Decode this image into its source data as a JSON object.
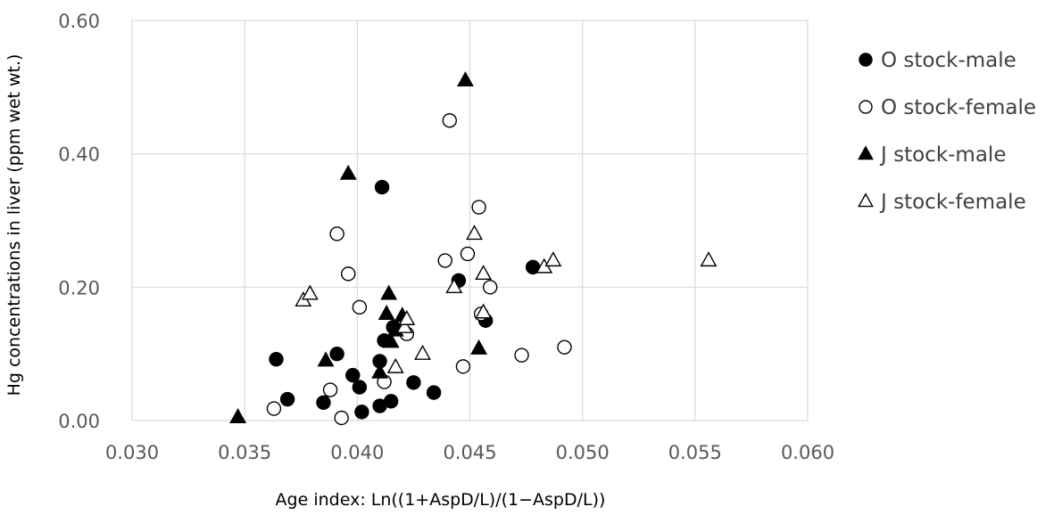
{
  "chart_data": {
    "type": "scatter",
    "title": "",
    "xlabel": "Age index: Ln((1+AspD/L)/(1−AspD/L))",
    "ylabel": "Hg concentrations in liver (ppm wet wt.)",
    "xlim": [
      0.03,
      0.06
    ],
    "ylim": [
      0.0,
      0.6
    ],
    "xticks": [
      "0.030",
      "0.035",
      "0.040",
      "0.045",
      "0.050",
      "0.055",
      "0.060"
    ],
    "yticks": [
      "0.00",
      "0.20",
      "0.40",
      "0.60"
    ],
    "grid": true,
    "legend_position": "right",
    "series": [
      {
        "name": "O stock-male",
        "marker": "circle-filled",
        "points": [
          [
            0.0364,
            0.092
          ],
          [
            0.0369,
            0.032
          ],
          [
            0.0385,
            0.027
          ],
          [
            0.0391,
            0.1
          ],
          [
            0.0398,
            0.068
          ],
          [
            0.0401,
            0.05
          ],
          [
            0.0402,
            0.013
          ],
          [
            0.041,
            0.022
          ],
          [
            0.041,
            0.089
          ],
          [
            0.0411,
            0.35
          ],
          [
            0.0412,
            0.12
          ],
          [
            0.0415,
            0.029
          ],
          [
            0.0416,
            0.14
          ],
          [
            0.0425,
            0.057
          ],
          [
            0.0434,
            0.042
          ],
          [
            0.0445,
            0.21
          ],
          [
            0.0457,
            0.15
          ],
          [
            0.0478,
            0.23
          ]
        ]
      },
      {
        "name": "O stock-female",
        "marker": "circle-open",
        "points": [
          [
            0.0363,
            0.018
          ],
          [
            0.0388,
            0.046
          ],
          [
            0.0391,
            0.28
          ],
          [
            0.0393,
            0.004
          ],
          [
            0.0396,
            0.22
          ],
          [
            0.0401,
            0.17
          ],
          [
            0.0412,
            0.058
          ],
          [
            0.0422,
            0.13
          ],
          [
            0.0439,
            0.24
          ],
          [
            0.0441,
            0.45
          ],
          [
            0.0447,
            0.081
          ],
          [
            0.0449,
            0.25
          ],
          [
            0.0454,
            0.32
          ],
          [
            0.0455,
            0.16
          ],
          [
            0.0459,
            0.2
          ],
          [
            0.0473,
            0.098
          ],
          [
            0.0492,
            0.11
          ]
        ]
      },
      {
        "name": "J stock-male",
        "marker": "triangle-filled",
        "points": [
          [
            0.0347,
            0.005
          ],
          [
            0.0386,
            0.09
          ],
          [
            0.0396,
            0.37
          ],
          [
            0.041,
            0.072
          ],
          [
            0.0413,
            0.16
          ],
          [
            0.0414,
            0.19
          ],
          [
            0.0415,
            0.118
          ],
          [
            0.0417,
            0.135
          ],
          [
            0.042,
            0.157
          ],
          [
            0.0448,
            0.51
          ],
          [
            0.0454,
            0.108
          ]
        ]
      },
      {
        "name": "J stock-female",
        "marker": "triangle-open",
        "points": [
          [
            0.0376,
            0.18
          ],
          [
            0.0379,
            0.19
          ],
          [
            0.0417,
            0.08
          ],
          [
            0.0421,
            0.14
          ],
          [
            0.0422,
            0.152
          ],
          [
            0.0429,
            0.1
          ],
          [
            0.0443,
            0.2
          ],
          [
            0.0452,
            0.28
          ],
          [
            0.0456,
            0.22
          ],
          [
            0.0456,
            0.162
          ],
          [
            0.0483,
            0.23
          ],
          [
            0.0487,
            0.24
          ],
          [
            0.0556,
            0.24
          ]
        ]
      }
    ]
  }
}
